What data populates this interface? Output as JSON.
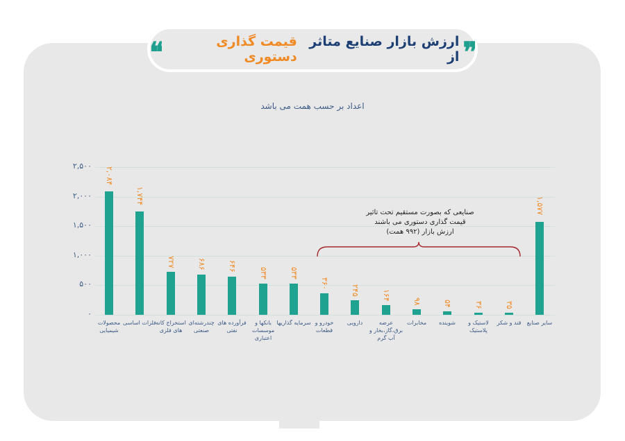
{
  "header": {
    "title_dark": "ارزش بازار صنایع متاثر از",
    "title_orange": "قیمت گذاری دستوری",
    "quote_left": "❝",
    "quote_right": "❞"
  },
  "subtitle": "اعداد بر حسب همت می باشد",
  "annotation": {
    "line1": "صنایعی که بصورت مستقیم تحت تاثیر",
    "line2": "قیمت گذاری دستوری می باشند",
    "line3": "ارزش بازار (۹۹۲ همت)"
  },
  "y_ticks": [
    "۰",
    "۵۰۰",
    "۱,۰۰۰",
    "۱,۵۰۰",
    "۲,۰۰۰",
    "۲,۵۰۰"
  ],
  "colors": {
    "bar": "#1fa290",
    "value_label": "#f08a24",
    "axis_text": "#3c5a86",
    "title_dark": "#1d3f74",
    "title_orange": "#f08a24",
    "bracket": "#a3282d",
    "panel": "#e8e8e8"
  },
  "bars": [
    {
      "label": "محصولات شیمیایی",
      "value_label": "۲,۰۸۴"
    },
    {
      "label": "فلزات اساسی",
      "value_label": "۱,۷۴۴"
    },
    {
      "label": "استخراج کانه های فلزی",
      "value_label": "۷۲۷"
    },
    {
      "label": "چندرشته‌ای صنعتی",
      "value_label": "۶۸۶"
    },
    {
      "label": "فرآورده های نفتی",
      "value_label": "۶۴۶"
    },
    {
      "label": "بانکها و موسسات اعتباری",
      "value_label": "۵۳۳"
    },
    {
      "label": "سرمایه گذاریها",
      "value_label": "۵۳۳"
    },
    {
      "label": "خودرو و قطعات",
      "value_label": "۳۶۰"
    },
    {
      "label": "دارویی",
      "value_label": "۲۴۵"
    },
    {
      "label": "عرضه برق،گاز،بخار و آب گرم",
      "value_label": "۱۶۴"
    },
    {
      "label": "مخابرات",
      "value_label": "۹۸"
    },
    {
      "label": "شوینده",
      "value_label": "۵۴"
    },
    {
      "label": "لاستیک و پلاستیک",
      "value_label": "۳۶"
    },
    {
      "label": "قند و شکر",
      "value_label": "۳۵"
    },
    {
      "label": "سایر صنایع",
      "value_label": "۱,۵۷۷"
    }
  ],
  "chart_data": {
    "type": "bar",
    "title": "ارزش بازار صنایع متاثر از قیمت گذاری دستوری",
    "subtitle": "اعداد بر حسب همت می باشد",
    "categories": [
      "محصولات شیمیایی",
      "فلزات اساسی",
      "استخراج کانه های فلزی",
      "چندرشته‌ای صنعتی",
      "فرآورده های نفتی",
      "بانکها و موسسات اعتباری",
      "سرمایه گذاریها",
      "خودرو و قطعات",
      "دارویی",
      "عرضه برق،گاز،بخار و آب گرم",
      "مخابرات",
      "شوینده",
      "لاستیک و پلاستیک",
      "قند و شکر",
      "سایر صنایع"
    ],
    "values": [
      2084,
      1744,
      727,
      686,
      646,
      533,
      533,
      360,
      245,
      164,
      98,
      54,
      36,
      35,
      1577
    ],
    "xlabel": "",
    "ylabel": "",
    "ylim": [
      0,
      2500
    ],
    "yticks": [
      0,
      500,
      1000,
      1500,
      2000,
      2500
    ],
    "grid": true,
    "legend": null,
    "annotations": [
      {
        "text": "صنایعی که بصورت مستقیم تحت تاثیر قیمت گذاری دستوری می باشند ارزش بازار (۹۹۲ همت)",
        "spans_categories": [
          "خودرو و قطعات",
          "قند و شکر"
        ]
      }
    ]
  }
}
